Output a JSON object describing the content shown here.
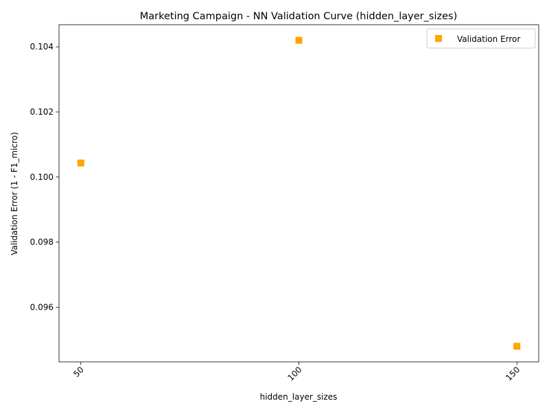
{
  "chart_data": {
    "type": "scatter",
    "title": "Marketing Campaign - NN Validation Curve (hidden_layer_sizes)",
    "xlabel": "hidden_layer_sizes",
    "ylabel": "Validation Error (1 - F1_micro)",
    "x_ticks": [
      50,
      100,
      150
    ],
    "y_ticks": [
      0.096,
      0.098,
      0.1,
      0.102,
      0.104
    ],
    "y_tick_labels": [
      "0.096",
      "0.098",
      "0.100",
      "0.102",
      "0.104"
    ],
    "xlim": [
      45,
      155
    ],
    "ylim": [
      0.09432,
      0.10468
    ],
    "grid": false,
    "legend_position": "top-right",
    "series": [
      {
        "name": "Validation Error",
        "marker": "square",
        "color": "#FFA500",
        "points": [
          {
            "x": 50,
            "y": 0.10043
          },
          {
            "x": 100,
            "y": 0.1042
          },
          {
            "x": 150,
            "y": 0.0948
          }
        ]
      }
    ]
  }
}
